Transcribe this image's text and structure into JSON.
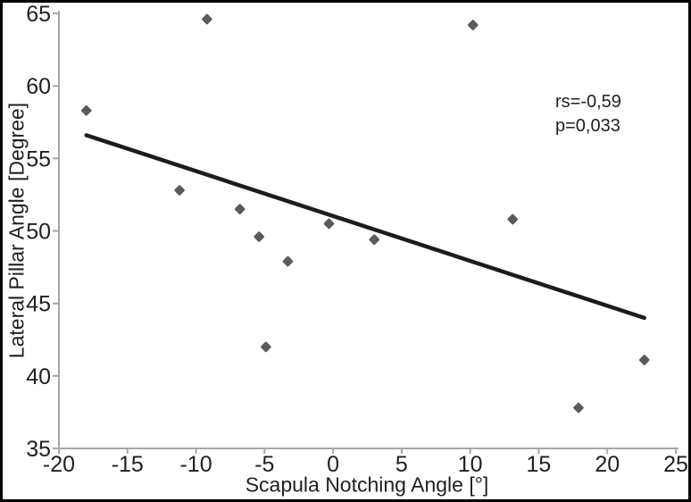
{
  "chart_data": {
    "type": "scatter",
    "title": "",
    "xlabel": "Scapula Notching Angle [°]",
    "ylabel": "Lateral Pillar Angle [Degree]",
    "xlim": [
      -20,
      25
    ],
    "ylim": [
      35,
      65
    ],
    "xticks": [
      -20,
      -15,
      -10,
      -5,
      0,
      5,
      10,
      15,
      20,
      25
    ],
    "yticks": [
      35,
      40,
      45,
      50,
      55,
      60,
      65
    ],
    "grid": false,
    "legend": false,
    "marker_shape": "diamond",
    "points": [
      {
        "x": -18.0,
        "y": 58.3
      },
      {
        "x": -11.2,
        "y": 52.8
      },
      {
        "x": -9.2,
        "y": 64.6
      },
      {
        "x": -6.8,
        "y": 51.5
      },
      {
        "x": -5.4,
        "y": 49.6
      },
      {
        "x": -4.9,
        "y": 42.0
      },
      {
        "x": -3.3,
        "y": 47.9
      },
      {
        "x": -0.3,
        "y": 50.5
      },
      {
        "x": 3.0,
        "y": 49.4
      },
      {
        "x": 10.2,
        "y": 64.2
      },
      {
        "x": 13.1,
        "y": 50.8
      },
      {
        "x": 17.9,
        "y": 37.8
      },
      {
        "x": 22.7,
        "y": 41.1
      }
    ],
    "trendline": {
      "x1": -18.0,
      "y1": 56.6,
      "x2": 22.7,
      "y2": 44.0
    },
    "annotation": {
      "line1": "rs=-0,59",
      "line2": "p=0,033"
    },
    "colors": {
      "marker": "#595a5c",
      "trendline": "#1c1c1c",
      "axis": "#a6a6a6",
      "text": "#1f1f1f",
      "background": "#ffffff",
      "frame": "#000000"
    }
  }
}
